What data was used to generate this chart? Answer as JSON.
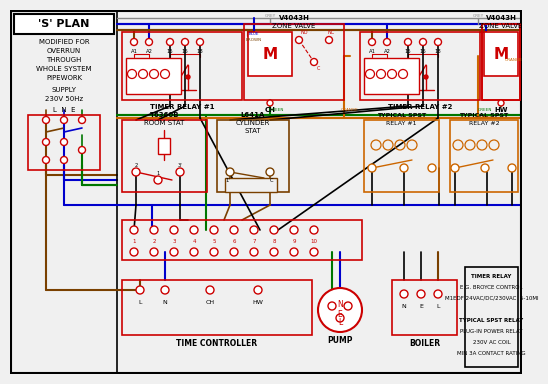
{
  "bg": "#f0f0f0",
  "white": "#ffffff",
  "black": "#000000",
  "red": "#cc0000",
  "blue": "#0000cc",
  "green": "#007700",
  "orange": "#cc6600",
  "brown": "#7a4000",
  "grey": "#888888",
  "dkgrey": "#555555",
  "title": "'S' PLAN",
  "sub": [
    "MODIFIED FOR",
    "OVERRUN",
    "THROUGH",
    "WHOLE SYSTEM",
    "PIPEWORK"
  ],
  "supply1": "SUPPLY",
  "supply2": "230V 50Hz",
  "lne": "L  N  E",
  "tr1": "TIMER RELAY #1",
  "tr2": "TIMER RELAY #2",
  "zv1": "V4043H",
  "zv2": "ZONE VALVE",
  "rs1": "T6360B",
  "rs2": "ROOM STAT",
  "cs1": "L641A",
  "cs2": "CYLINDER",
  "cs3": "STAT",
  "sp1a": "TYPICAL SPST",
  "sp1b": "RELAY #1",
  "sp2a": "TYPICAL SPST",
  "sp2b": "RELAY #2",
  "tc": "TIME CONTROLLER",
  "pump": "PUMP",
  "boiler": "BOILER",
  "info": [
    "TIMER RELAY",
    "E.G. BROYCE CONTROL",
    "M1EDF 24VAC/DC/230VAC  5-10MI",
    "",
    "TYPICAL SPST RELAY",
    "PLUG-IN POWER RELAY",
    "230V AC COIL",
    "MIN 3A CONTACT RATING"
  ]
}
